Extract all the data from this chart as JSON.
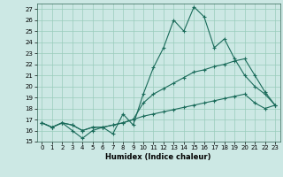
{
  "title": "",
  "xlabel": "Humidex (Indice chaleur)",
  "background_color": "#cce8e4",
  "line_color": "#1a6b5a",
  "xlim": [
    -0.5,
    23.5
  ],
  "ylim": [
    15,
    27.5
  ],
  "yticks": [
    15,
    16,
    17,
    18,
    19,
    20,
    21,
    22,
    23,
    24,
    25,
    26,
    27
  ],
  "xticks": [
    0,
    1,
    2,
    3,
    4,
    5,
    6,
    7,
    8,
    9,
    10,
    11,
    12,
    13,
    14,
    15,
    16,
    17,
    18,
    19,
    20,
    21,
    22,
    23
  ],
  "x": [
    0,
    1,
    2,
    3,
    4,
    5,
    6,
    7,
    8,
    9,
    10,
    11,
    12,
    13,
    14,
    15,
    16,
    17,
    18,
    19,
    20,
    21,
    22,
    23
  ],
  "line1": [
    16.7,
    16.3,
    16.7,
    16.0,
    15.3,
    16.0,
    16.3,
    15.7,
    17.5,
    16.5,
    19.3,
    21.7,
    23.5,
    26.0,
    25.0,
    27.2,
    26.3,
    23.5,
    24.3,
    22.5,
    21.0,
    20.0,
    19.3,
    18.3
  ],
  "line2": [
    16.7,
    16.3,
    16.7,
    16.5,
    16.0,
    16.3,
    16.3,
    16.5,
    16.7,
    17.0,
    18.5,
    19.3,
    19.8,
    20.3,
    20.8,
    21.3,
    21.5,
    21.8,
    22.0,
    22.3,
    22.5,
    21.0,
    19.5,
    18.3
  ],
  "line3": [
    16.7,
    16.3,
    16.7,
    16.5,
    16.0,
    16.3,
    16.3,
    16.5,
    16.7,
    17.0,
    17.3,
    17.5,
    17.7,
    17.9,
    18.1,
    18.3,
    18.5,
    18.7,
    18.9,
    19.1,
    19.3,
    18.5,
    18.0,
    18.3
  ],
  "grid_color": "#99ccbb",
  "marker": "+",
  "markersize": 3,
  "linewidth": 0.8,
  "tick_fontsize": 5.0,
  "xlabel_fontsize": 6.0
}
